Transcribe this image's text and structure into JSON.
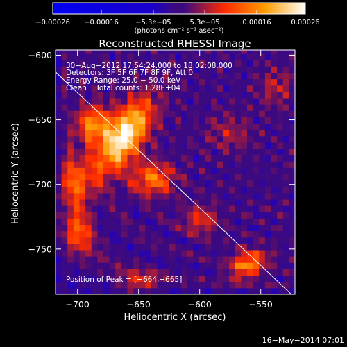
{
  "chart_data": {
    "type": "heatmap",
    "title": "Reconstructed RHESSI Image",
    "xlabel": "Heliocentric X (arcsec)",
    "ylabel": "Heliocentric Y (arcsec)",
    "xlim": [
      -718,
      -522
    ],
    "ylim": [
      -785,
      -596
    ],
    "x_ticks": [
      -700,
      -650,
      -600,
      -550
    ],
    "y_ticks": [
      -600,
      -650,
      -700,
      -750
    ],
    "x_tick_labels": [
      "−700",
      "−650",
      "−600",
      "−550"
    ],
    "y_tick_labels": [
      "−600",
      "−650",
      "−700",
      "−750"
    ],
    "colorbar": {
      "range": [
        -0.00026,
        0.00026
      ],
      "tick_values": [
        -0.00026,
        -0.00016,
        -5.3e-05,
        5.3e-05,
        0.00016,
        0.00026
      ],
      "tick_labels": [
        "−0.00026",
        "−0.00016",
        "−5.3e−05",
        "5.3e−05",
        "0.00016",
        "0.00026"
      ],
      "unit_label": "(photons cm⁻² s⁻¹ asec⁻²)"
    },
    "annotations": [
      "30−Aug−2012 17:54:24.000 to 18:02:08.000",
      "Detectors: 3F 5F 6F 7F 8F 9F, Att 0",
      "Energy Range: 25.0 − 50.0 keV",
      "Clean    Total counts: 1.28E+04"
    ],
    "peak_label": "Position of Peak = [−664,−665]",
    "peak_position": [
      -664,
      -665
    ],
    "limb_line": [
      [
        -718,
        -613
      ],
      [
        -525,
        -785
      ]
    ],
    "sources": [
      {
        "x": -664,
        "y": -665,
        "peak": 0.00026,
        "sx": 10,
        "sy": 22,
        "tilt": -0.6
      },
      {
        "x": -689,
        "y": -656,
        "peak": 0.00016,
        "sx": 10,
        "sy": 10,
        "tilt": 0
      },
      {
        "x": -641,
        "y": -698,
        "peak": 0.00014,
        "sx": 12,
        "sy": 9,
        "tilt": 0
      },
      {
        "x": -703,
        "y": -700,
        "peak": 0.00012,
        "sx": 10,
        "sy": 14,
        "tilt": 0
      },
      {
        "x": -563,
        "y": -764,
        "peak": 0.00015,
        "sx": 11,
        "sy": 7,
        "tilt": 0.4
      },
      {
        "x": -703,
        "y": -740,
        "peak": 0.00011,
        "sx": 9,
        "sy": 12,
        "tilt": 0
      },
      {
        "x": -602,
        "y": -730,
        "peak": 8.5e-05,
        "sx": 10,
        "sy": 8,
        "tilt": 0
      },
      {
        "x": -652,
        "y": -778,
        "peak": 8e-05,
        "sx": 12,
        "sy": 6,
        "tilt": 0
      },
      {
        "x": -540,
        "y": -627,
        "peak": 6e-05,
        "sx": 10,
        "sy": 10,
        "tilt": 0
      },
      {
        "x": -578,
        "y": -663,
        "peak": 5.5e-05,
        "sx": 12,
        "sy": 10,
        "tilt": 0
      }
    ]
  },
  "footer_timestamp": "16−May−2014 07:01"
}
